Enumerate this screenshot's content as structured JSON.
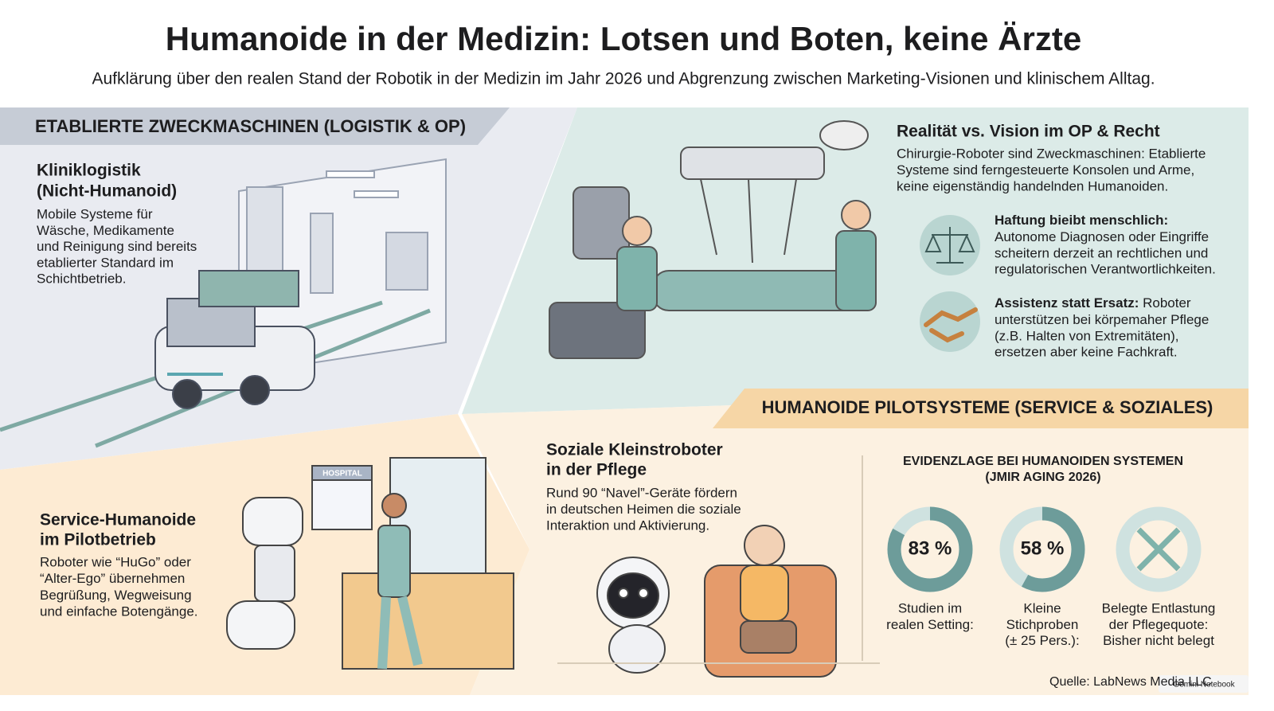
{
  "header": {
    "title": "Humanoide in der Medizin: Lotsen und Boten, keine Ärzte",
    "subtitle": "Aufklärung über den realen Stand der Robotik in der Medizin im Jahr 2026 und Abgrenzung zwischen Marketing-Visionen und klinischem Alltag."
  },
  "logistics": {
    "heading": "ETABLIERTE ZWECKMASCHINEN (LOGISTIK & OP)",
    "title_lines": [
      "Kliniklogistik",
      "(Nicht-Humanoid)"
    ],
    "text_lines": [
      "Mobile Systeme für",
      "Wäsche, Medikamente",
      "und Reinigung sind bereits",
      "etablierter Standard im",
      "Schichtbetrieb."
    ]
  },
  "or": {
    "title": "Realität vs. Vision im OP & Recht",
    "text_lines": [
      "Chirurgie-Roboter sind Zweckmaschinen: Etablierte",
      "Systeme sind ferngesteuerte Konsolen und Arme,",
      "keine eigenständig handelnden Humanoiden."
    ],
    "items": [
      {
        "lead": "Haftung bieibt menschlich:",
        "first_rest": "",
        "lines": [
          "Autonome Diagnosen oder Eingriffe",
          "scheitern derzeit an rechtlichen und",
          "regulatorischen Verantwortlichkeiten."
        ]
      },
      {
        "lead": "Assistenz statt Ersatz:",
        "first_rest": " Roboter",
        "lines": [
          "unterstützen bei körpemaher Pflege",
          "(z.B. Halten von Extremitäten),",
          "ersetzen aber keine Fachkraft."
        ]
      }
    ]
  },
  "humanoids": {
    "heading": "HUMANOIDE PILOTSYSTEME (SERVICE & SOZIALES)",
    "service": {
      "title_lines": [
        "Service-Humanoide",
        "im Pilotbetrieb"
      ],
      "text_lines": [
        "Roboter wie “HuGo” oder",
        "“Alter-Ego” übernehmen",
        "Begrüßung, Wegweisung",
        "und einfache Botengänge."
      ]
    },
    "hospital_sign": "HOSPITAL",
    "social": {
      "title_lines": [
        "Soziale Kleinstroboter",
        "in der Pflege"
      ],
      "text_lines": [
        "Rund 90 “Navel”-Geräte fördern",
        "in deutschen Heimen die soziale",
        "Interaktion und Aktivierung."
      ]
    },
    "evidence": {
      "title_lines": [
        "EVIDENZLAGE BEI HUMANOIDEN SYSTEMEN",
        "(JMIR AGING 2026)"
      ],
      "stats": [
        {
          "value": 83,
          "label": "83 %",
          "caption_lines": [
            "Studien im",
            "realen Setting:"
          ]
        },
        {
          "value": 58,
          "label": "58 %",
          "caption_lines": [
            "Kleine",
            "Stichproben",
            "(± 25 Pers.):"
          ]
        },
        {
          "caption_lines": [
            "Belegte Entlastung",
            "der Pflegequote:",
            "Bisher nicht belegt"
          ]
        }
      ]
    }
  },
  "source": "Quelle: LabNews Media LLC",
  "watermark": "Gemini Notebook"
}
